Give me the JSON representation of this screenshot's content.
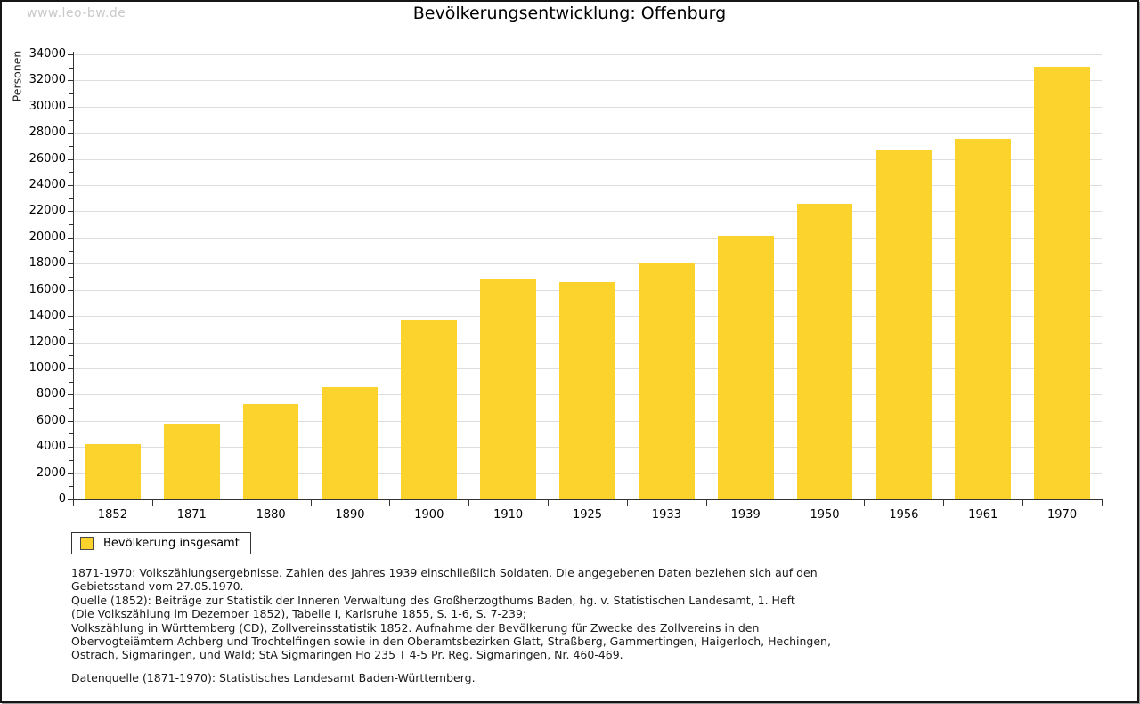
{
  "watermark": "www.leo-bw.de",
  "chart_data": {
    "type": "bar",
    "title": "Bevölkerungsentwicklung: Offenburg",
    "ylabel": "Personen",
    "xlabel": "",
    "categories": [
      "1852",
      "1871",
      "1880",
      "1890",
      "1900",
      "1910",
      "1925",
      "1933",
      "1939",
      "1950",
      "1956",
      "1961",
      "1970"
    ],
    "values": [
      4200,
      5800,
      7300,
      8600,
      13650,
      16850,
      16600,
      18050,
      20150,
      22550,
      26750,
      27550,
      33050
    ],
    "series_name": "Bevölkerung insgesamt",
    "ylim": [
      0,
      34000
    ],
    "y_major_step": 2000,
    "y_minor_step": 1000,
    "grid": "horizontal-major",
    "legend_position": "bottom-left",
    "bar_color": "#FCD32D",
    "grid_color": "#DDDDDD",
    "axis_color": "#333333"
  },
  "legend": {
    "label": "Bevölkerung insgesamt",
    "swatch_color": "#FCD32D"
  },
  "footnotes": {
    "lines": [
      "1871-1970: Volkszählungsergebnisse. Zahlen des Jahres 1939 einschließlich Soldaten. Die angegebenen Daten beziehen sich auf den",
      "Gebietsstand vom 27.05.1970.",
      "Quelle (1852): Beiträge zur Statistik der Inneren Verwaltung des Großherzogthums Baden, hg. v. Statistischen Landesamt, 1. Heft",
      "(Die Volkszählung im Dezember 1852), Tabelle I, Karlsruhe 1855, S. 1-6, S. 7-239;",
      "Volkszählung in Württemberg (CD), Zollvereinsstatistik 1852. Aufnahme der Bevölkerung für Zwecke des Zollvereins in den",
      "Obervogteiämtern Achberg und Trochtelfingen sowie in den Oberamtsbezirken Glatt, Straßberg, Gammertingen, Haigerloch, Hechingen,",
      "Ostrach, Sigmaringen, und Wald; StA Sigmaringen Ho 235 T 4-5 Pr. Reg. Sigmaringen, Nr. 460-469."
    ],
    "datasource": "Datenquelle (1871-1970): Statistisches Landesamt Baden-Württemberg."
  }
}
